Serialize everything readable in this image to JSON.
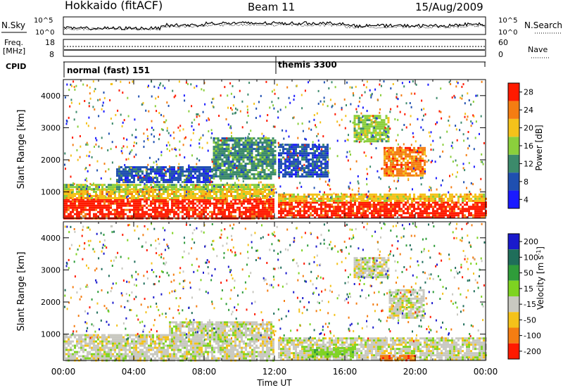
{
  "header": {
    "station": "Hokkaido (fitACF)",
    "beam": "Beam 11",
    "date": "15/Aug/2009"
  },
  "top_panel": {
    "left_label": "N.Sky",
    "right_label": "N.Search",
    "ytick_hi": "10^5",
    "ytick_lo": "10^0"
  },
  "freq_panel": {
    "left_label_1": "Freq.",
    "left_label_2": "[MHz]",
    "right_label": "Nave",
    "left_ticks": [
      "18",
      "8"
    ],
    "right_ticks": [
      "60",
      "0"
    ]
  },
  "cpid": {
    "label": "CPID",
    "modes": [
      {
        "text": "normal (fast) 151",
        "start_hour": 0
      },
      {
        "text": "themis 3300",
        "start_hour": 12.08
      }
    ]
  },
  "chart_data": [
    {
      "type": "heatmap",
      "name": "power-panel",
      "title": "",
      "ylabel": "Slant Range [km]",
      "xlim": [
        0,
        24
      ],
      "ylim": [
        180,
        4500
      ],
      "yticks": [
        1000,
        2000,
        3000,
        4000
      ],
      "colorbar": {
        "label": "Power [dB]",
        "ticks": [
          "4",
          "8",
          "12",
          "16",
          "20",
          "24",
          "28"
        ],
        "colors": [
          "#1a1aff",
          "#1f4fb0",
          "#3c8a6b",
          "#8bcf3c",
          "#f4c21a",
          "#f47d12",
          "#ff1a00"
        ]
      },
      "bands": [
        {
          "x0": 0.0,
          "x1": 12.0,
          "y0": 200,
          "y1": 800,
          "level": 6
        },
        {
          "x0": 0.0,
          "x1": 12.0,
          "y0": 800,
          "y1": 1100,
          "level": 4
        },
        {
          "x0": 0.0,
          "x1": 12.0,
          "y0": 1100,
          "y1": 1250,
          "level": 3
        },
        {
          "x0": 12.2,
          "x1": 24.0,
          "y0": 200,
          "y1": 700,
          "level": 6
        },
        {
          "x0": 12.2,
          "x1": 24.0,
          "y0": 700,
          "y1": 950,
          "level": 4
        },
        {
          "x0": 3.0,
          "x1": 8.5,
          "y0": 1300,
          "y1": 1800,
          "level": 1
        },
        {
          "x0": 8.5,
          "x1": 12.0,
          "y0": 1400,
          "y1": 2700,
          "level": 2
        },
        {
          "x0": 12.2,
          "x1": 15.0,
          "y0": 1500,
          "y1": 2500,
          "level": 1
        },
        {
          "x0": 18.2,
          "x1": 20.5,
          "y0": 1500,
          "y1": 2400,
          "level": 5
        },
        {
          "x0": 16.5,
          "x1": 18.5,
          "y0": 2600,
          "y1": 3400,
          "level": 3
        }
      ]
    },
    {
      "type": "heatmap",
      "name": "velocity-panel",
      "title": "",
      "ylabel": "Slant Range [km]",
      "xlabel": "Time UT",
      "xlim": [
        0,
        24
      ],
      "ylim": [
        180,
        4500
      ],
      "yticks": [
        1000,
        2000,
        3000,
        4000
      ],
      "xticks": [
        "00:00",
        "04:00",
        "08:00",
        "12:00",
        "16:00",
        "20:00",
        "00:00"
      ],
      "colorbar": {
        "label": "Velocity [m s^-1]",
        "ticks": [
          "200",
          "100",
          "50",
          "15",
          "-15",
          "-50",
          "-100",
          "-200"
        ],
        "colors": [
          "#1a1acc",
          "#1f6e5a",
          "#2f9c3a",
          "#7ed321",
          "#c8c8c0",
          "#f4c21a",
          "#f47d12",
          "#ff1a00"
        ]
      },
      "bands": [
        {
          "x0": 0.0,
          "x1": 12.0,
          "y0": 200,
          "y1": 1000,
          "level": 4
        },
        {
          "x0": 6.0,
          "x1": 12.0,
          "y0": 1000,
          "y1": 1400,
          "level": 4
        },
        {
          "x0": 12.2,
          "x1": 24.0,
          "y0": 200,
          "y1": 900,
          "level": 4
        },
        {
          "x0": 14.0,
          "x1": 16.5,
          "y0": 300,
          "y1": 600,
          "level": 3
        },
        {
          "x0": 18.0,
          "x1": 20.0,
          "y0": 200,
          "y1": 350,
          "level": 6
        },
        {
          "x0": 18.5,
          "x1": 20.5,
          "y0": 1500,
          "y1": 2400,
          "level": 4
        },
        {
          "x0": 16.5,
          "x1": 18.5,
          "y0": 2800,
          "y1": 3400,
          "level": 4
        }
      ]
    }
  ]
}
